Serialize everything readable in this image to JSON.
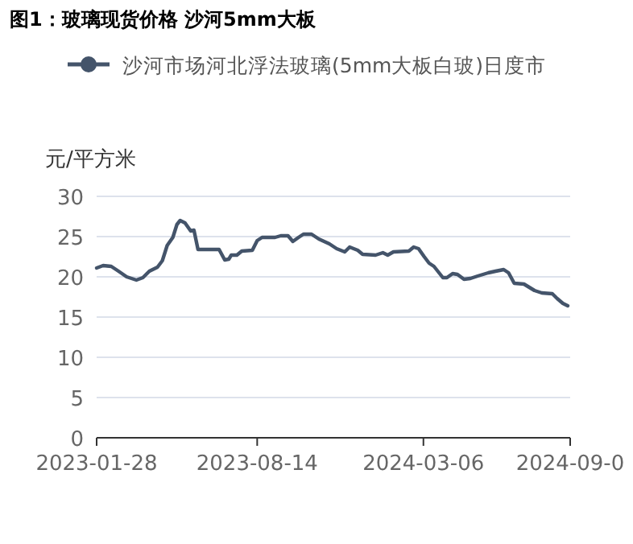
{
  "chart_data": {
    "type": "line",
    "title": "图1：玻璃现货价格 沙河5mm大板",
    "ylabel": "元/平方米",
    "x": [
      "2023-01-28",
      "2023-02-05",
      "2023-02-15",
      "2023-02-24",
      "2023-03-06",
      "2023-03-18",
      "2023-03-26",
      "2023-04-03",
      "2023-04-13",
      "2023-04-19",
      "2023-04-25",
      "2023-05-02",
      "2023-05-07",
      "2023-05-11",
      "2023-05-17",
      "2023-05-24",
      "2023-05-28",
      "2023-06-02",
      "2023-06-28",
      "2023-07-05",
      "2023-07-10",
      "2023-07-13",
      "2023-07-20",
      "2023-07-26",
      "2023-08-08",
      "2023-08-14",
      "2023-08-20",
      "2023-09-05",
      "2023-09-12",
      "2023-09-21",
      "2023-09-27",
      "2023-10-04",
      "2023-10-10",
      "2023-10-20",
      "2023-10-29",
      "2023-11-11",
      "2023-11-20",
      "2023-11-30",
      "2023-12-06",
      "2023-12-16",
      "2023-12-22",
      "2024-01-07",
      "2024-01-16",
      "2024-01-22",
      "2024-01-29",
      "2024-02-17",
      "2024-02-23",
      "2024-02-29",
      "2024-03-07",
      "2024-03-13",
      "2024-03-19",
      "2024-03-30",
      "2024-04-04",
      "2024-04-11",
      "2024-04-17",
      "2024-04-25",
      "2024-05-03",
      "2024-05-12",
      "2024-05-25",
      "2024-06-03",
      "2024-06-13",
      "2024-06-19",
      "2024-06-26",
      "2024-07-08",
      "2024-07-21",
      "2024-07-30",
      "2024-08-12",
      "2024-08-18",
      "2024-08-25",
      "2024-08-31"
    ],
    "series": [
      {
        "name": "沙河市场河北浮法玻璃(5mm大板白玻)日度市",
        "color": "#44546a",
        "values": [
          21.1,
          21.4,
          21.3,
          20.7,
          20.0,
          19.6,
          19.9,
          20.7,
          21.2,
          22.0,
          23.9,
          24.9,
          26.5,
          27.0,
          26.7,
          25.7,
          25.8,
          23.4,
          23.4,
          22.1,
          22.2,
          22.7,
          22.7,
          23.2,
          23.3,
          24.5,
          24.9,
          24.9,
          25.1,
          25.1,
          24.4,
          24.9,
          25.3,
          25.3,
          24.7,
          24.1,
          23.5,
          23.1,
          23.7,
          23.3,
          22.8,
          22.7,
          23.0,
          22.7,
          23.1,
          23.2,
          23.7,
          23.5,
          22.5,
          21.7,
          21.3,
          19.9,
          19.9,
          20.4,
          20.3,
          19.7,
          19.8,
          20.1,
          20.5,
          20.7,
          20.9,
          20.5,
          19.2,
          19.1,
          18.3,
          18.0,
          17.9,
          17.3,
          16.7,
          16.4
        ]
      }
    ],
    "xlim": [
      "2023-01-28",
      "2024-09-03"
    ],
    "xticks": [
      {
        "value": "2023-01-28",
        "label": "2023-01-28"
      },
      {
        "value": "2023-08-14",
        "label": "2023-08-14"
      },
      {
        "value": "2024-03-06",
        "label": "2024-03-06"
      },
      {
        "value": "2024-09-03",
        "label": "2024-09-0"
      }
    ],
    "ylim": [
      0,
      30
    ],
    "yticks": [
      0,
      5,
      10,
      15,
      20,
      25,
      30
    ],
    "grid": "y",
    "legend": "top",
    "marker": "none",
    "line_style": "solid"
  }
}
